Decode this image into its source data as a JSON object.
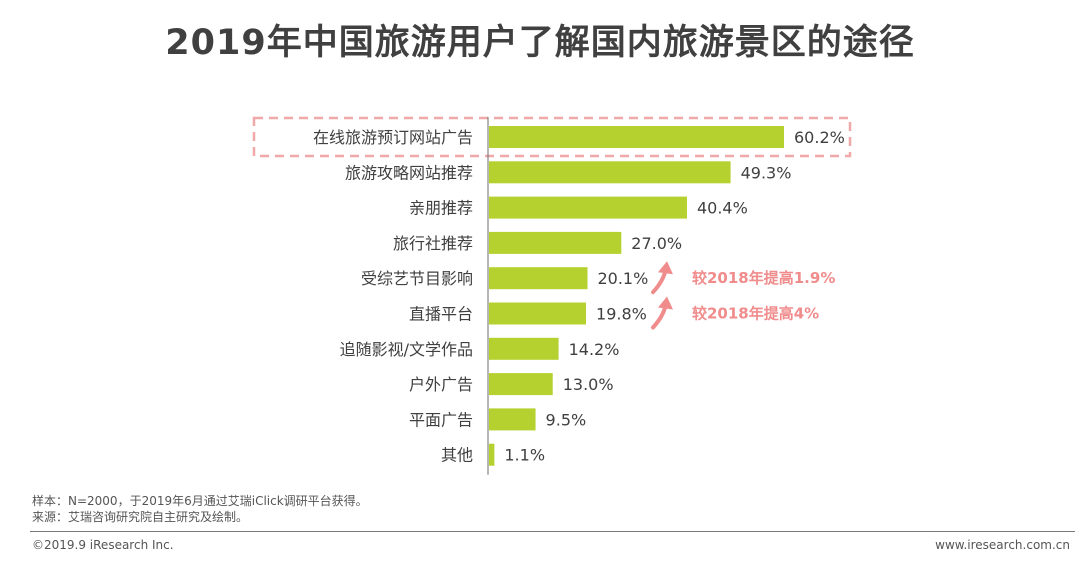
{
  "page": {
    "title": "2019年中国旅游用户了解国内旅游景区的途径"
  },
  "chart_data": {
    "type": "bar",
    "orientation": "horizontal",
    "title": "2019年中国旅游用户了解国内旅游景区的途径",
    "categories": [
      "在线旅游预订网站广告",
      "旅游攻略网站推荐",
      "亲朋推荐",
      "旅行社推荐",
      "受综艺节目影响",
      "直播平台",
      "追随影视/文学作品",
      "户外广告",
      "平面广告",
      "其他"
    ],
    "values": [
      60.2,
      49.3,
      40.4,
      27.0,
      20.1,
      19.8,
      14.2,
      13.0,
      9.5,
      1.1
    ],
    "value_labels": [
      "60.2%",
      "49.3%",
      "40.4%",
      "27.0%",
      "20.1%",
      "19.8%",
      "14.2%",
      "13.0%",
      "9.5%",
      "1.1%"
    ],
    "bar_color": "#b5d130",
    "highlight_index": 0,
    "highlight_color": "#f0a8a8",
    "annotations": [
      {
        "category_index": 4,
        "text": "较2018年提高1.9%",
        "color": "#f08c8c"
      },
      {
        "category_index": 5,
        "text": "较2018年提高4%",
        "color": "#f08c8c"
      }
    ],
    "xlim": [
      0,
      60.2
    ]
  },
  "footer": {
    "sample": "样本：N=2000，于2019年6月通过艾瑞iClick调研平台获得。",
    "source": "来源：艾瑞咨询研究院自主研究及绘制。",
    "copyright": "©2019.9 iResearch Inc.",
    "website": "www.iresearch.com.cn"
  }
}
